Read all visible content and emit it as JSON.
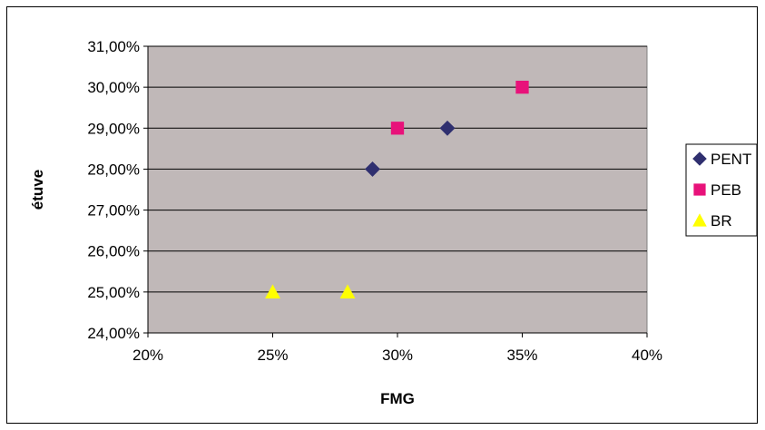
{
  "chart_data": {
    "type": "scatter",
    "title": "",
    "xlabel": "FMG",
    "ylabel": "étuve",
    "xlim": [
      0.2,
      0.4
    ],
    "ylim": [
      0.24,
      0.31
    ],
    "x_ticks": [
      "20%",
      "25%",
      "30%",
      "35%",
      "40%"
    ],
    "x_tick_values": [
      0.2,
      0.25,
      0.3,
      0.35,
      0.4
    ],
    "y_ticks": [
      "24,00%",
      "25,00%",
      "26,00%",
      "27,00%",
      "28,00%",
      "29,00%",
      "30,00%",
      "31,00%"
    ],
    "y_tick_values": [
      0.24,
      0.25,
      0.26,
      0.27,
      0.28,
      0.29,
      0.3,
      0.31
    ],
    "grid": "horizontal",
    "plot_background": "#c0b8b8",
    "legend_position": "right",
    "series": [
      {
        "name": "PENT",
        "marker": "diamond",
        "color": "#2f2f6f",
        "points": [
          {
            "x": 0.29,
            "y": 0.28
          },
          {
            "x": 0.32,
            "y": 0.29
          }
        ]
      },
      {
        "name": "PEB",
        "marker": "square",
        "color": "#e8127a",
        "points": [
          {
            "x": 0.3,
            "y": 0.29
          },
          {
            "x": 0.35,
            "y": 0.3
          }
        ]
      },
      {
        "name": "BR",
        "marker": "triangle",
        "color": "#ffff00",
        "points": [
          {
            "x": 0.25,
            "y": 0.25
          },
          {
            "x": 0.28,
            "y": 0.25
          }
        ]
      }
    ]
  }
}
